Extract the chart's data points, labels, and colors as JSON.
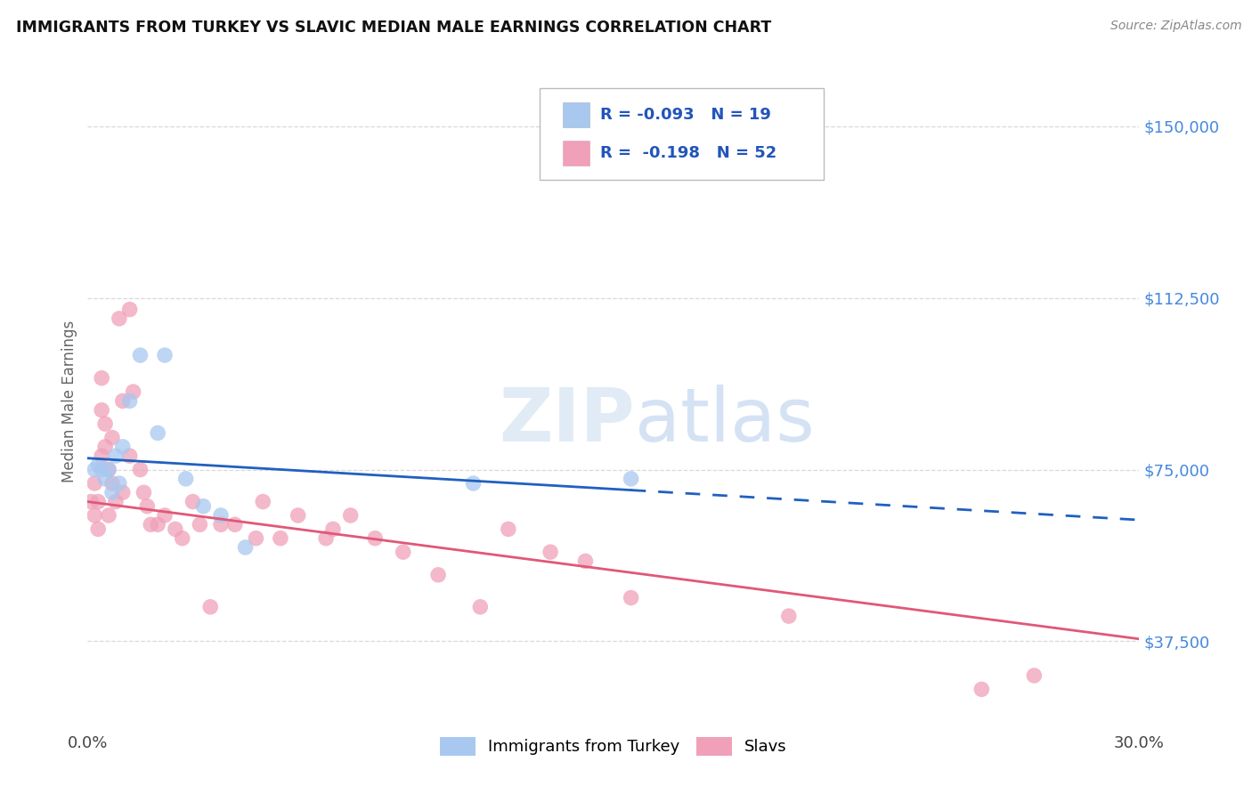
{
  "title": "IMMIGRANTS FROM TURKEY VS SLAVIC MEDIAN MALE EARNINGS CORRELATION CHART",
  "source": "Source: ZipAtlas.com",
  "ylabel": "Median Male Earnings",
  "xlim": [
    0.0,
    0.3
  ],
  "ylim": [
    18000,
    162000
  ],
  "yticks": [
    37500,
    75000,
    112500,
    150000
  ],
  "ytick_labels": [
    "$37,500",
    "$75,000",
    "$112,500",
    "$150,000"
  ],
  "xticks": [
    0.0,
    0.05,
    0.1,
    0.15,
    0.2,
    0.25,
    0.3
  ],
  "xtick_labels": [
    "0.0%",
    "",
    "",
    "",
    "",
    "",
    "30.0%"
  ],
  "background_color": "#ffffff",
  "grid_color": "#d8d8d8",
  "watermark": "ZIPatlas",
  "legend_R_turkey": "-0.093",
  "legend_N_turkey": "19",
  "legend_R_slavic": "-0.198",
  "legend_N_slavic": "52",
  "turkey_color": "#a8c8f0",
  "slavic_color": "#f0a0b8",
  "turkey_line_color": "#2060c0",
  "slavic_line_color": "#e05878",
  "turkey_line_solid_end": 0.155,
  "turkey_points": [
    [
      0.002,
      75000
    ],
    [
      0.003,
      76000
    ],
    [
      0.004,
      75000
    ],
    [
      0.005,
      73000
    ],
    [
      0.006,
      75000
    ],
    [
      0.007,
      70000
    ],
    [
      0.008,
      78000
    ],
    [
      0.009,
      72000
    ],
    [
      0.01,
      80000
    ],
    [
      0.012,
      90000
    ],
    [
      0.015,
      100000
    ],
    [
      0.02,
      83000
    ],
    [
      0.022,
      100000
    ],
    [
      0.028,
      73000
    ],
    [
      0.033,
      67000
    ],
    [
      0.038,
      65000
    ],
    [
      0.045,
      58000
    ],
    [
      0.11,
      72000
    ],
    [
      0.155,
      73000
    ]
  ],
  "slavic_points": [
    [
      0.001,
      68000
    ],
    [
      0.002,
      72000
    ],
    [
      0.002,
      65000
    ],
    [
      0.003,
      68000
    ],
    [
      0.003,
      62000
    ],
    [
      0.004,
      78000
    ],
    [
      0.004,
      88000
    ],
    [
      0.004,
      95000
    ],
    [
      0.005,
      80000
    ],
    [
      0.005,
      85000
    ],
    [
      0.006,
      75000
    ],
    [
      0.006,
      65000
    ],
    [
      0.007,
      82000
    ],
    [
      0.007,
      72000
    ],
    [
      0.008,
      68000
    ],
    [
      0.009,
      108000
    ],
    [
      0.01,
      90000
    ],
    [
      0.01,
      70000
    ],
    [
      0.012,
      110000
    ],
    [
      0.012,
      78000
    ],
    [
      0.013,
      92000
    ],
    [
      0.015,
      75000
    ],
    [
      0.016,
      70000
    ],
    [
      0.017,
      67000
    ],
    [
      0.018,
      63000
    ],
    [
      0.02,
      63000
    ],
    [
      0.022,
      65000
    ],
    [
      0.025,
      62000
    ],
    [
      0.027,
      60000
    ],
    [
      0.03,
      68000
    ],
    [
      0.032,
      63000
    ],
    [
      0.035,
      45000
    ],
    [
      0.038,
      63000
    ],
    [
      0.042,
      63000
    ],
    [
      0.048,
      60000
    ],
    [
      0.05,
      68000
    ],
    [
      0.055,
      60000
    ],
    [
      0.06,
      65000
    ],
    [
      0.068,
      60000
    ],
    [
      0.07,
      62000
    ],
    [
      0.075,
      65000
    ],
    [
      0.082,
      60000
    ],
    [
      0.09,
      57000
    ],
    [
      0.1,
      52000
    ],
    [
      0.112,
      45000
    ],
    [
      0.12,
      62000
    ],
    [
      0.132,
      57000
    ],
    [
      0.142,
      55000
    ],
    [
      0.155,
      47000
    ],
    [
      0.2,
      43000
    ],
    [
      0.255,
      27000
    ],
    [
      0.27,
      30000
    ]
  ],
  "title_color": "#111111",
  "source_color": "#888888",
  "axis_label_color": "#666666",
  "ytick_label_color": "#4488dd",
  "xtick_label_color": "#444444"
}
